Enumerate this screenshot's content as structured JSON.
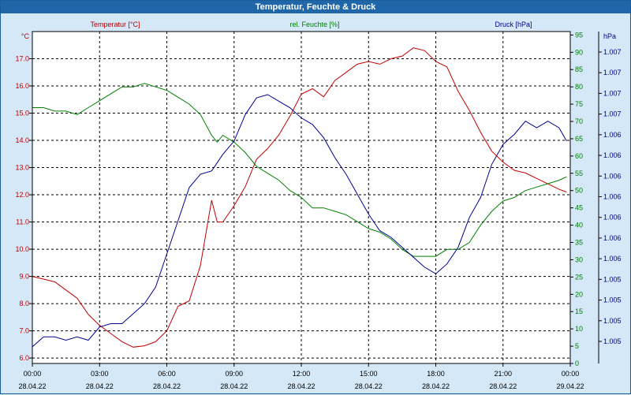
{
  "window": {
    "title": "Temperatur, Feuchte & Druck"
  },
  "colors": {
    "temperature": "#c00000",
    "humidity": "#008000",
    "pressure": "#000090",
    "axis": "#000000"
  },
  "chart_data": {
    "type": "line",
    "title": "Temperatur, Feuchte & Druck",
    "legend_placement": "top",
    "grid": true,
    "x_ticks": [
      {
        "time": "00:00",
        "date": "28.04.22"
      },
      {
        "time": "03:00",
        "date": "28.04.22"
      },
      {
        "time": "06:00",
        "date": "28.04.22"
      },
      {
        "time": "09:00",
        "date": "28.04.22"
      },
      {
        "time": "12:00",
        "date": "28.04.22"
      },
      {
        "time": "15:00",
        "date": "28.04.22"
      },
      {
        "time": "18:00",
        "date": "28.04.22"
      },
      {
        "time": "21:00",
        "date": "28.04.22"
      },
      {
        "time": "00:00",
        "date": "29.04.22"
      }
    ],
    "xlim": [
      "28.04.22 00:00",
      "29.04.22 00:00"
    ],
    "axes": {
      "temperature": {
        "label": "Temperatur [°C]",
        "unit": "°C",
        "ylim": [
          5.8,
          18.0
        ],
        "tick_labels": [
          "6.0",
          "7.0",
          "8.0",
          "9.0",
          "10.0",
          "11.0",
          "12.0",
          "13.0",
          "14.0",
          "15.0",
          "16.0",
          "17.0"
        ],
        "ticks": [
          6,
          7,
          8,
          9,
          10,
          11,
          12,
          13,
          14,
          15,
          16,
          17
        ]
      },
      "humidity": {
        "label": "rel. Feuchte [%]",
        "unit": "%",
        "ylim": [
          0,
          96
        ],
        "tick_labels": [
          "0",
          "5",
          "10",
          "15",
          "20",
          "25",
          "30",
          "35",
          "40",
          "45",
          "50",
          "55",
          "60",
          "65",
          "70",
          "75",
          "80",
          "85",
          "90",
          "95"
        ],
        "ticks": [
          0,
          5,
          10,
          15,
          20,
          25,
          30,
          35,
          40,
          45,
          50,
          55,
          60,
          65,
          70,
          75,
          80,
          85,
          90,
          95
        ]
      },
      "pressure": {
        "label": "Druck [hPa]",
        "unit": "hPa",
        "tick_labels": [
          "1.005",
          "1.005",
          "1.005",
          "1.005",
          "1.006",
          "1.006",
          "1.006",
          "1.006",
          "1.006",
          "1.006",
          "1.006",
          "1.007",
          "1.007",
          "1.007",
          "1.007"
        ]
      }
    },
    "series": [
      {
        "name": "Temperatur [°C]",
        "axis": "temperature",
        "x": [
          "00:00",
          "00:30",
          "01:00",
          "01:30",
          "02:00",
          "02:30",
          "03:00",
          "03:30",
          "04:00",
          "04:30",
          "05:00",
          "05:30",
          "06:00",
          "06:30",
          "07:00",
          "07:30",
          "08:00",
          "08:15",
          "08:30",
          "09:00",
          "09:30",
          "10:00",
          "10:30",
          "11:00",
          "11:30",
          "12:00",
          "12:30",
          "13:00",
          "13:30",
          "14:00",
          "14:30",
          "15:00",
          "15:30",
          "16:00",
          "16:30",
          "17:00",
          "17:30",
          "18:00",
          "18:30",
          "19:00",
          "19:30",
          "20:00",
          "20:30",
          "21:00",
          "21:30",
          "22:00",
          "22:30",
          "23:00",
          "23:30",
          "23:50"
        ],
        "values": [
          9.0,
          8.9,
          8.8,
          8.5,
          8.2,
          7.6,
          7.2,
          6.9,
          6.6,
          6.4,
          6.45,
          6.6,
          7.0,
          7.9,
          8.1,
          9.4,
          11.8,
          11.0,
          11.0,
          11.6,
          12.3,
          13.3,
          13.7,
          14.2,
          14.9,
          15.7,
          15.9,
          15.6,
          16.2,
          16.5,
          16.8,
          16.9,
          16.8,
          17.0,
          17.1,
          17.4,
          17.3,
          16.9,
          16.7,
          15.8,
          15.1,
          14.3,
          13.6,
          13.2,
          12.9,
          12.8,
          12.6,
          12.4,
          12.2,
          12.1
        ]
      },
      {
        "name": "rel. Feuchte [%]",
        "axis": "humidity",
        "x": [
          "00:00",
          "00:30",
          "01:00",
          "01:30",
          "02:00",
          "02:30",
          "03:00",
          "03:30",
          "04:00",
          "04:30",
          "05:00",
          "05:30",
          "06:00",
          "06:30",
          "07:00",
          "07:30",
          "08:00",
          "08:15",
          "08:30",
          "09:00",
          "09:30",
          "10:00",
          "10:30",
          "11:00",
          "11:30",
          "12:00",
          "12:30",
          "13:00",
          "13:30",
          "14:00",
          "14:30",
          "15:00",
          "15:30",
          "16:00",
          "16:30",
          "17:00",
          "17:30",
          "18:00",
          "18:30",
          "19:00",
          "19:30",
          "20:00",
          "20:30",
          "21:00",
          "21:30",
          "22:00",
          "22:30",
          "23:00",
          "23:30",
          "23:50"
        ],
        "values": [
          74,
          74,
          73,
          73,
          72,
          74,
          76,
          78,
          80,
          80,
          81,
          80,
          79,
          77,
          75,
          72,
          66,
          64,
          66,
          64,
          61,
          57,
          55,
          53,
          50,
          48,
          45,
          45,
          44,
          43,
          41,
          39,
          38,
          36,
          33,
          31,
          31,
          31,
          33,
          33,
          35,
          40,
          44,
          47,
          48,
          50,
          51,
          52,
          53,
          54
        ]
      },
      {
        "name": "Druck [hPa]",
        "axis": "pressure",
        "x": [
          "00:00",
          "00:30",
          "01:00",
          "01:30",
          "02:00",
          "02:30",
          "03:00",
          "03:30",
          "04:00",
          "04:30",
          "05:00",
          "05:30",
          "06:00",
          "06:30",
          "07:00",
          "07:30",
          "08:00",
          "08:30",
          "09:00",
          "09:30",
          "10:00",
          "10:30",
          "11:00",
          "11:30",
          "12:00",
          "12:30",
          "13:00",
          "13:30",
          "14:00",
          "14:30",
          "15:00",
          "15:30",
          "16:00",
          "16:30",
          "17:00",
          "17:30",
          "18:00",
          "18:30",
          "19:00",
          "19:30",
          "20:00",
          "20:30",
          "21:00",
          "21:30",
          "22:00",
          "22:30",
          "23:00",
          "23:30",
          "23:50"
        ],
        "values": [
          5,
          8,
          8,
          7,
          8,
          7,
          11,
          12,
          12,
          15,
          18,
          23,
          33,
          43,
          53,
          57,
          58,
          63,
          67,
          75,
          80,
          81,
          79,
          77,
          74,
          72,
          68,
          62,
          57,
          51,
          45,
          40,
          38,
          35,
          32,
          29,
          27,
          30,
          35,
          44,
          50,
          60,
          66,
          69,
          73,
          71,
          73,
          71,
          67
        ]
      }
    ]
  }
}
